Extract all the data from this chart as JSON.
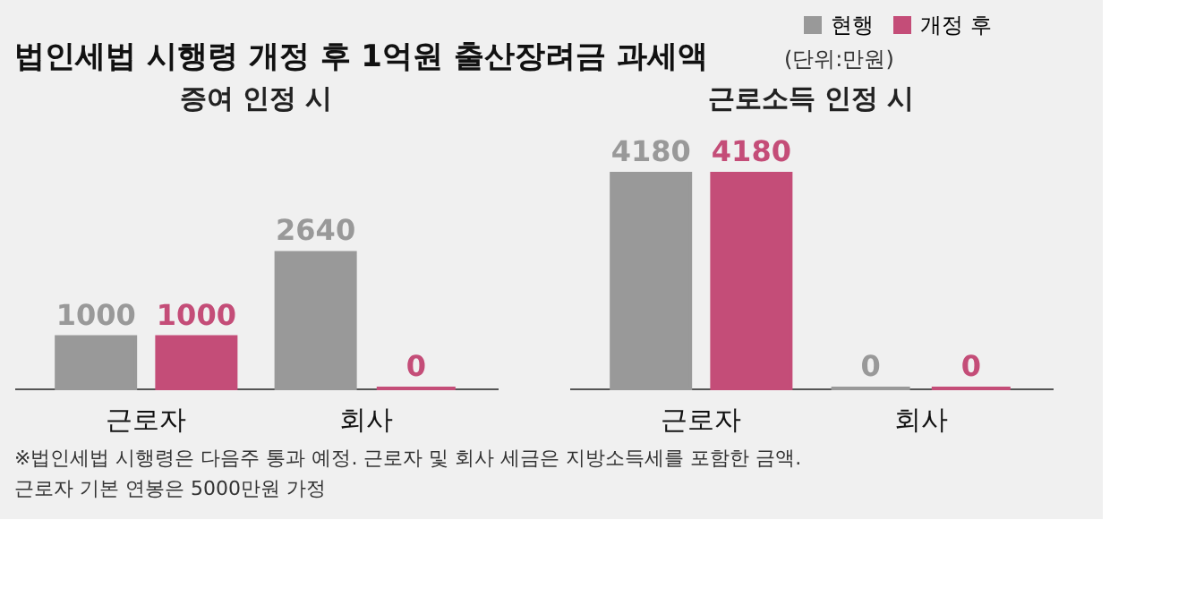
{
  "chart_data": [
    {
      "type": "bar",
      "title": "법인세법 시행령 개정 후 1억원 출산장려금 과세액",
      "subtitle": "증여 인정 시",
      "annotations": [
        "(단위:만원)"
      ],
      "categories": [
        "근로자",
        "회사"
      ],
      "series": [
        {
          "name": "현행",
          "color": "#999999",
          "values": [
            1000,
            2640
          ]
        },
        {
          "name": "개정 후",
          "color": "#c44d78",
          "values": [
            1000,
            0
          ]
        }
      ],
      "data_labels": true,
      "grid": false,
      "legend": "top right"
    },
    {
      "type": "bar",
      "subtitle": "근로소득 인정 시",
      "annotations": [
        "※법인세법 시행령은 다음주 통과 예정. 근로자 및 회사 세금은 지방소득세를 포함한 금액.",
        "근로자 기본 연봉은 5000만원 가정"
      ],
      "categories": [
        "근로자",
        "회사"
      ],
      "series": [
        {
          "name": "현행",
          "color": "#999999",
          "values": [
            4180,
            0
          ]
        },
        {
          "name": "개정 후",
          "color": "#c44d78",
          "values": [
            4180,
            0
          ]
        }
      ],
      "data_labels": true,
      "grid": false
    }
  ]
}
